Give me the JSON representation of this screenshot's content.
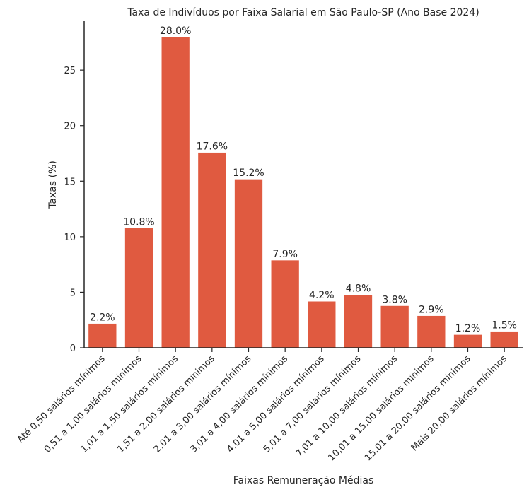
{
  "chart_data": {
    "type": "bar",
    "title": "Taxa de Indivíduos por Faixa Salarial em São Paulo-SP (Ano Base 2024)",
    "xlabel": "Faixas Remuneração Médias",
    "ylabel": "Taxas (%)",
    "categories": [
      "Até 0,50 salários mínimos",
      "0,51 a 1,00 salários mínimos",
      "1,01 a 1,50 salários mínimos",
      "1,51 a 2,00 salários mínimos",
      "2,01 a 3,00 salários mínimos",
      "3,01 a 4,00 salários mínimos",
      "4,01 a 5,00 salários mínimos",
      "5,01 a 7,00 salários mínimos",
      "7,01 a 10,00 salários mínimos",
      "10,01 a 15,00 salários mínimos",
      "15,01 a 20,00 salários mínimos",
      "Mais 20,00 salários mínimos"
    ],
    "values": [
      2.2,
      10.8,
      28.0,
      17.6,
      15.2,
      7.9,
      4.2,
      4.8,
      3.8,
      2.9,
      1.2,
      1.5
    ],
    "data_labels": [
      "2.2%",
      "10.8%",
      "28.0%",
      "17.6%",
      "15.2%",
      "7.9%",
      "4.2%",
      "4.8%",
      "3.8%",
      "2.9%",
      "1.2%",
      "1.5%"
    ],
    "yticks": [
      0,
      5,
      10,
      15,
      20,
      25
    ],
    "ylim": [
      0,
      29.4
    ],
    "bar_color": "#e05a40",
    "grid": false,
    "legend": "none"
  }
}
